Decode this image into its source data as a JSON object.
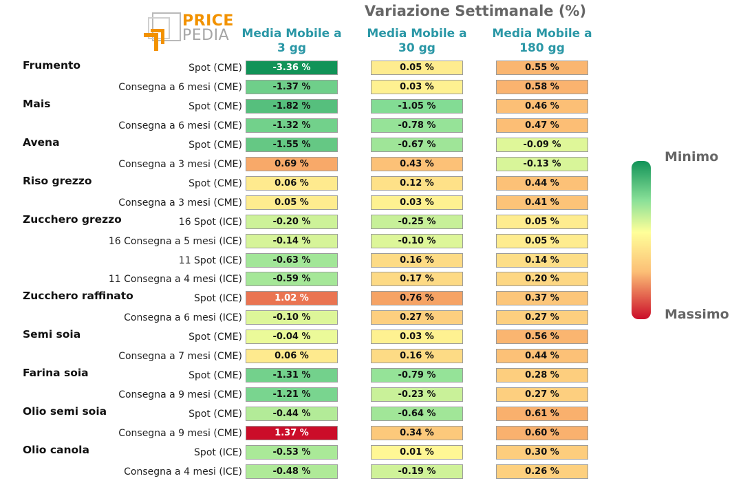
{
  "logo": {
    "word1": "PRICE",
    "word2": "PEDIA"
  },
  "chart_data": {
    "type": "heatmap",
    "title": "Variazione Settimanale (%)",
    "columns": [
      "Media Mobile a\n3 gg",
      "Media Mobile a\n30 gg",
      "Media Mobile a\n180 gg"
    ],
    "value_format": "{v} %",
    "color_scale": {
      "min_label": "Minimo",
      "max_label": "Massimo",
      "min_color": "#119358",
      "mid_color": "#ffff99",
      "max_color": "#cb0d29",
      "domain": [
        -3.36,
        1.37
      ]
    },
    "rows": [
      {
        "group": "Frumento",
        "label": "Spot (CME)",
        "values": [
          -3.36,
          0.05,
          0.55
        ]
      },
      {
        "group": "",
        "label": "Consegna a 6 mesi (CME)",
        "values": [
          -1.37,
          0.03,
          0.58
        ]
      },
      {
        "group": "Mais",
        "label": "Spot (CME)",
        "values": [
          -1.82,
          -1.05,
          0.46
        ]
      },
      {
        "group": "",
        "label": "Consegna a 6 mesi (CME)",
        "values": [
          -1.32,
          -0.78,
          0.47
        ]
      },
      {
        "group": "Avena",
        "label": "Spot (CME)",
        "values": [
          -1.55,
          -0.67,
          -0.09
        ]
      },
      {
        "group": "",
        "label": "Consegna a 3 mesi (CME)",
        "values": [
          0.69,
          0.43,
          -0.13
        ]
      },
      {
        "group": "Riso grezzo",
        "label": "Spot (CME)",
        "values": [
          0.06,
          0.12,
          0.44
        ]
      },
      {
        "group": "",
        "label": "Consegna a 3 mesi (CME)",
        "values": [
          0.05,
          0.03,
          0.41
        ]
      },
      {
        "group": "Zucchero grezzo",
        "label": "16 Spot (ICE)",
        "values": [
          -0.2,
          -0.25,
          0.05
        ]
      },
      {
        "group": "",
        "label": "16 Consegna a 5 mesi (ICE)",
        "values": [
          -0.14,
          -0.1,
          0.05
        ]
      },
      {
        "group": "",
        "label": "11 Spot (ICE)",
        "values": [
          -0.63,
          0.16,
          0.14
        ]
      },
      {
        "group": "",
        "label": "11 Consegna a 4 mesi (ICE)",
        "values": [
          -0.59,
          0.17,
          0.2
        ]
      },
      {
        "group": "Zucchero raffinato",
        "label": "Spot (ICE)",
        "values": [
          1.02,
          0.76,
          0.37
        ]
      },
      {
        "group": "",
        "label": "Consegna a 6 mesi (ICE)",
        "values": [
          -0.1,
          0.27,
          0.27
        ]
      },
      {
        "group": "Semi soia",
        "label": "Spot (CME)",
        "values": [
          -0.04,
          0.03,
          0.56
        ]
      },
      {
        "group": "",
        "label": "Consegna a 7 mesi (CME)",
        "values": [
          0.06,
          0.16,
          0.44
        ]
      },
      {
        "group": "Farina soia",
        "label": "Spot (CME)",
        "values": [
          -1.31,
          -0.79,
          0.28
        ]
      },
      {
        "group": "",
        "label": "Consegna a 9 mesi (CME)",
        "values": [
          -1.21,
          -0.23,
          0.27
        ]
      },
      {
        "group": "Olio semi soia",
        "label": "Spot (CME)",
        "values": [
          -0.44,
          -0.64,
          0.61
        ]
      },
      {
        "group": "",
        "label": "Consegna a 9 mesi (CME)",
        "values": [
          1.37,
          0.34,
          0.6
        ]
      },
      {
        "group": "Olio canola",
        "label": "Spot (ICE)",
        "values": [
          -0.53,
          0.01,
          0.3
        ]
      },
      {
        "group": "",
        "label": "Consegna a 4 mesi (ICE)",
        "values": [
          -0.48,
          -0.19,
          0.26
        ]
      }
    ]
  }
}
